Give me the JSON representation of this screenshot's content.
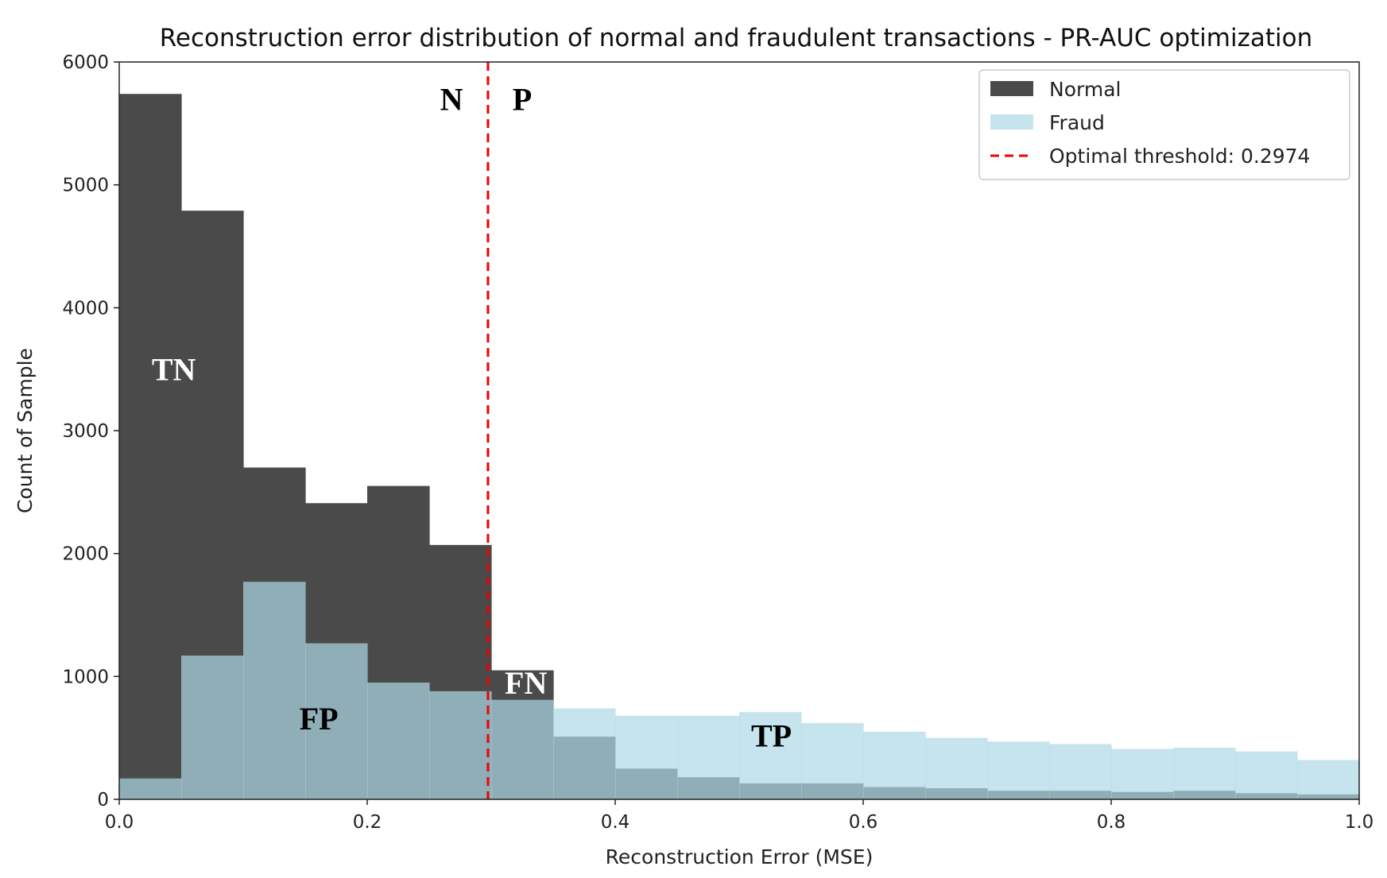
{
  "chart_data": {
    "type": "bar",
    "title": "Reconstruction error distribution of normal and fraudulent transactions - PR-AUC optimization",
    "xlabel": "Reconstruction Error (MSE)",
    "ylabel": "Count of Sample",
    "xlim": [
      0.0,
      1.0
    ],
    "ylim": [
      0,
      6000
    ],
    "xticks": [
      "0.0",
      "0.2",
      "0.4",
      "0.6",
      "0.8",
      "1.0"
    ],
    "yticks": [
      "0",
      "1000",
      "2000",
      "3000",
      "4000",
      "5000",
      "6000"
    ],
    "bin_edges": [
      0.0,
      0.05,
      0.1,
      0.15,
      0.2,
      0.25,
      0.3,
      0.35,
      0.4,
      0.45,
      0.5,
      0.55,
      0.6,
      0.65,
      0.7,
      0.75,
      0.8,
      0.85,
      0.9,
      0.95,
      1.0
    ],
    "legend_position": "top-right",
    "series": [
      {
        "name": "Normal",
        "color": "#4a4a4a",
        "values": [
          5740,
          4790,
          2700,
          2410,
          2550,
          2070,
          1050,
          510,
          250,
          180,
          130,
          130,
          100,
          90,
          70,
          70,
          60,
          70,
          50,
          40
        ]
      },
      {
        "name": "Fraud",
        "color": "#add8e6",
        "opacity": 0.7,
        "values": [
          170,
          1170,
          1770,
          1270,
          950,
          880,
          810,
          740,
          680,
          680,
          710,
          620,
          550,
          500,
          470,
          450,
          410,
          420,
          390,
          320
        ]
      }
    ],
    "threshold": {
      "label": "Optimal threshold: 0.2974",
      "value": 0.2974,
      "color": "#ee0000"
    },
    "annotations": [
      {
        "text": "N",
        "x": 0.268,
        "y": 5610
      },
      {
        "text": "P",
        "x": 0.325,
        "y": 5610
      },
      {
        "text": "TN",
        "x": 0.044,
        "y": 3410
      },
      {
        "text": "FN",
        "x": 0.328,
        "y": 860
      },
      {
        "text": "FP",
        "x": 0.161,
        "y": 570
      },
      {
        "text": "TP",
        "x": 0.526,
        "y": 430
      }
    ]
  }
}
